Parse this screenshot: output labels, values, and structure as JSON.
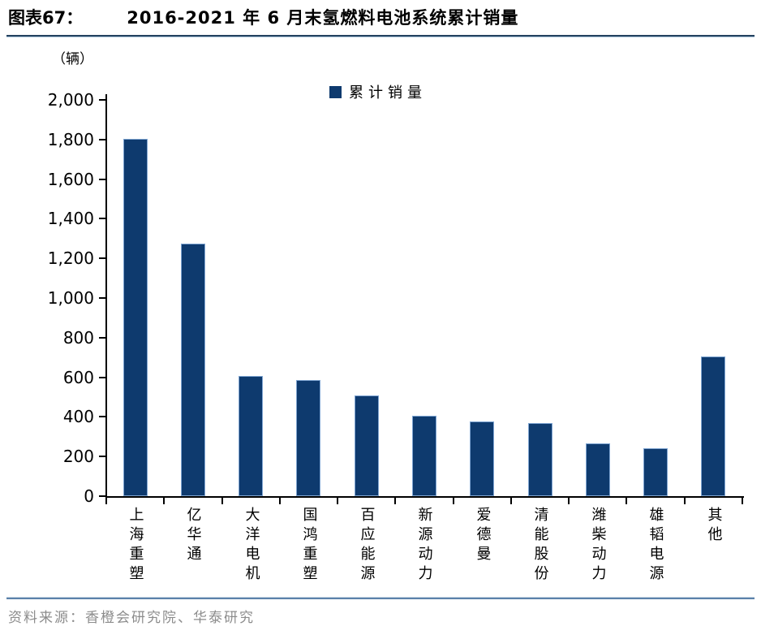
{
  "figure": {
    "label": "图表67：",
    "title": "2016-2021 年 6 月末氢燃料电池系统累计销量",
    "unit_label": "（辆）",
    "source": "资料来源：香橙会研究院、华泰研究"
  },
  "legend": {
    "position": "top-center",
    "items": [
      {
        "label": "累计销量",
        "color": "#0e3a6e"
      }
    ]
  },
  "chart_data": {
    "type": "bar",
    "title": "2016-2021 年 6 月末氢燃料电池系统累计销量",
    "xlabel": "",
    "ylabel": "（辆）",
    "categories": [
      "上海重塑",
      "亿华通",
      "大洋电机",
      "国鸿重塑",
      "百应能源",
      "新源动力",
      "爱德曼",
      "清能股份",
      "潍柴动力",
      "雄韬电源",
      "其他"
    ],
    "series": [
      {
        "name": "累计销量",
        "values": [
          1805,
          1275,
          605,
          585,
          510,
          405,
          375,
          370,
          265,
          240,
          705
        ]
      }
    ],
    "ylim": [
      0,
      2000
    ],
    "ytick_step": 200,
    "ytick_labels": [
      "0",
      "200",
      "400",
      "600",
      "800",
      "1,000",
      "1,200",
      "1,400",
      "1,600",
      "1,800",
      "2,000"
    ],
    "grid": false,
    "legend_position": "top-center",
    "bar_color": "#0e3a6e"
  },
  "colors": {
    "bar": "#0e3a6e",
    "bar_edge": "#7fa5d2",
    "axis": "#000000",
    "title_rule": "#24425f",
    "bottom_rule": "#5c82aa",
    "source_text": "#8c8c8c"
  }
}
